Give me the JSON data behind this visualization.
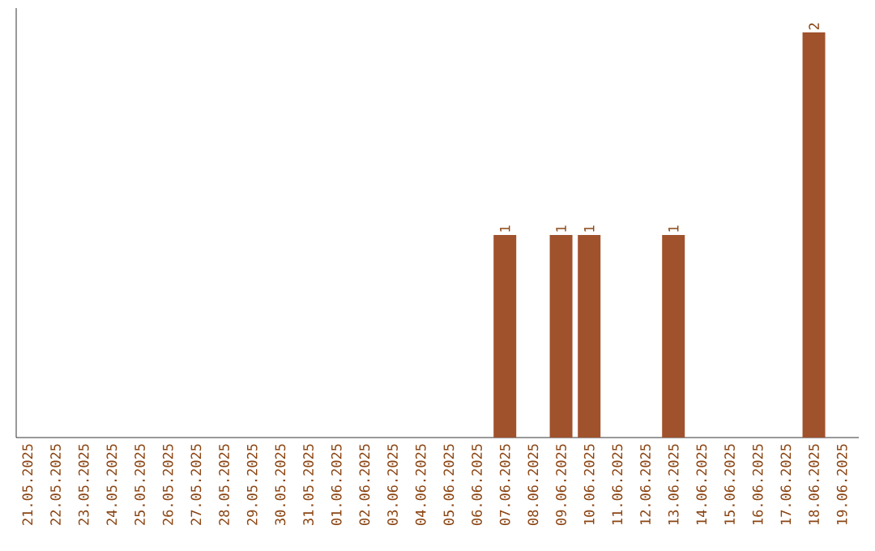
{
  "chart_data": {
    "type": "bar",
    "color": "#a0522d",
    "categories": [
      "21.05.2025",
      "22.05.2025",
      "23.05.2025",
      "24.05.2025",
      "25.05.2025",
      "26.05.2025",
      "27.05.2025",
      "28.05.2025",
      "29.05.2025",
      "30.05.2025",
      "31.05.2025",
      "01.06.2025",
      "02.06.2025",
      "03.06.2025",
      "04.06.2025",
      "05.06.2025",
      "06.06.2025",
      "07.06.2025",
      "08.06.2025",
      "09.06.2025",
      "10.06.2025",
      "11.06.2025",
      "12.06.2025",
      "13.06.2025",
      "14.06.2025",
      "15.06.2025",
      "16.06.2025",
      "17.06.2025",
      "18.06.2025",
      "19.06.2025"
    ],
    "values": [
      null,
      null,
      null,
      null,
      null,
      null,
      null,
      null,
      null,
      null,
      null,
      null,
      null,
      null,
      null,
      null,
      null,
      1,
      null,
      1,
      1,
      null,
      null,
      1,
      null,
      null,
      null,
      null,
      2,
      null
    ],
    "data_labels": true,
    "tick_labels": "x"
  }
}
